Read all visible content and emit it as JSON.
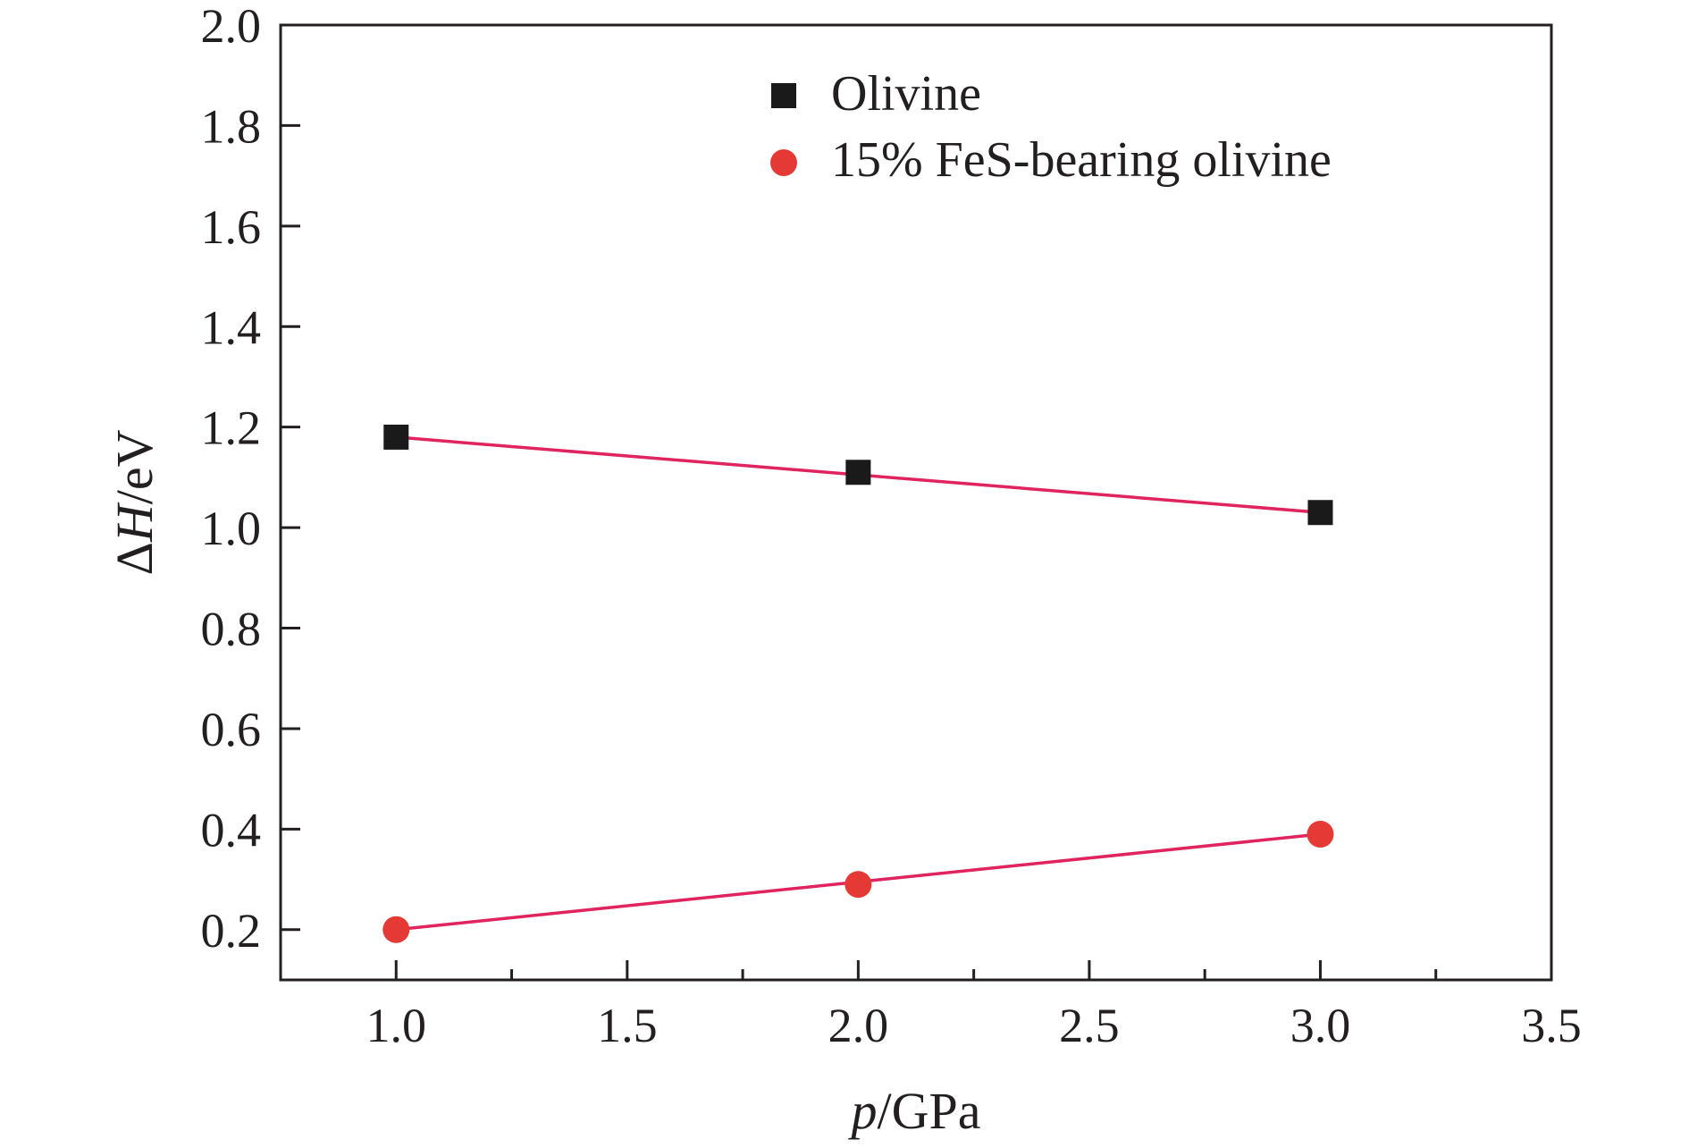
{
  "chart_data": {
    "type": "scatter",
    "title": "",
    "xlabel": {
      "italic": "p",
      "rest": "/GPa"
    },
    "ylabel": {
      "delta": "Δ",
      "italic": "H",
      "rest": "/eV"
    },
    "xlim": [
      0.75,
      3.5
    ],
    "ylim": [
      0.1,
      2.0
    ],
    "x_ticks": [
      1.0,
      1.5,
      2.0,
      2.5,
      3.0,
      3.5
    ],
    "x_tick_labels": [
      "1.0",
      "1.5",
      "2.0",
      "2.5",
      "3.0",
      "3.5"
    ],
    "x_minor_ticks": [
      1.25,
      1.75,
      2.25,
      2.75,
      3.25
    ],
    "y_ticks": [
      0.2,
      0.4,
      0.6,
      0.8,
      1.0,
      1.2,
      1.4,
      1.6,
      1.8,
      2.0
    ],
    "y_tick_labels": [
      "0.2",
      "0.4",
      "0.6",
      "0.8",
      "1.0",
      "1.2",
      "1.4",
      "1.6",
      "1.8",
      "2.0"
    ],
    "legend_position": "top-center",
    "grid": false,
    "fit_line_color": "#e0245e",
    "series": [
      {
        "name": "Olivine",
        "marker": "square",
        "color": "#1a1a1a",
        "x": [
          1.0,
          2.0,
          3.0
        ],
        "y": [
          1.18,
          1.11,
          1.03
        ],
        "fit": [
          [
            1.0,
            1.18
          ],
          [
            3.0,
            1.03
          ]
        ]
      },
      {
        "name": "15% FeS-bearing olivine",
        "marker": "circle",
        "color": "#e53935",
        "x": [
          1.0,
          2.0,
          3.0
        ],
        "y": [
          0.2,
          0.29,
          0.39
        ],
        "fit": [
          [
            1.0,
            0.2
          ],
          [
            3.0,
            0.39
          ]
        ]
      }
    ]
  }
}
